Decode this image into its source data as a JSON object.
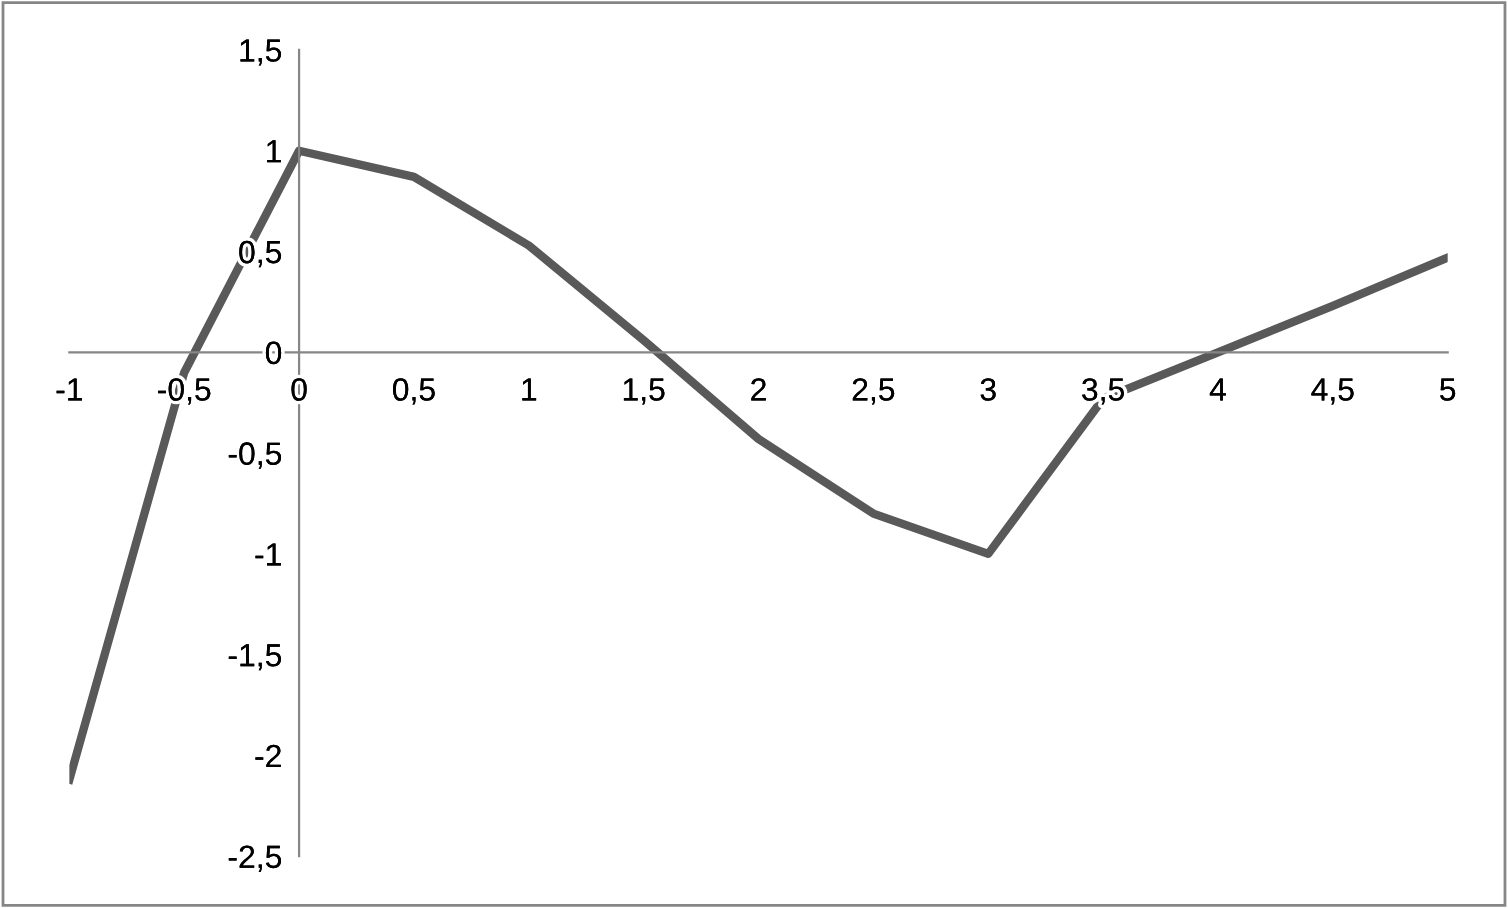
{
  "chart_data": {
    "type": "line",
    "x": [
      -1,
      -0.5,
      0,
      0.5,
      1,
      1.5,
      2,
      2.5,
      3,
      3.5,
      4,
      4.5,
      5
    ],
    "series": [
      {
        "color": "#595959",
        "values": [
          -2.12,
          -0.1,
          1.0,
          0.87,
          0.53,
          0.06,
          -0.43,
          -0.8,
          -1.0,
          -0.23,
          0.0,
          0.23,
          0.47
        ]
      }
    ],
    "xlim": [
      -1,
      5
    ],
    "ylim": [
      -2.5,
      1.5
    ],
    "xticks": [
      -1,
      {
        "value": -0.5,
        "label": "-0,5"
      },
      0,
      {
        "value": 0.5,
        "label": "0,5"
      },
      1,
      {
        "value": 1.5,
        "label": "1,5"
      },
      2,
      {
        "value": 2.5,
        "label": "2,5"
      },
      3,
      {
        "value": 3.5,
        "label": "3,5"
      },
      4,
      {
        "value": 4.5,
        "label": "4,5"
      },
      5
    ],
    "yticks": [
      {
        "value": -2.5,
        "label": "-2,5"
      },
      -2,
      {
        "value": -1.5,
        "label": "-1,5"
      },
      -1,
      {
        "value": -0.5,
        "label": "-0,5"
      },
      0,
      {
        "value": 0.5,
        "label": "0,5"
      },
      1,
      {
        "value": 1.5,
        "label": "1,5"
      }
    ],
    "grid": false,
    "legend": false,
    "marker": "none",
    "line_style": "solid"
  }
}
